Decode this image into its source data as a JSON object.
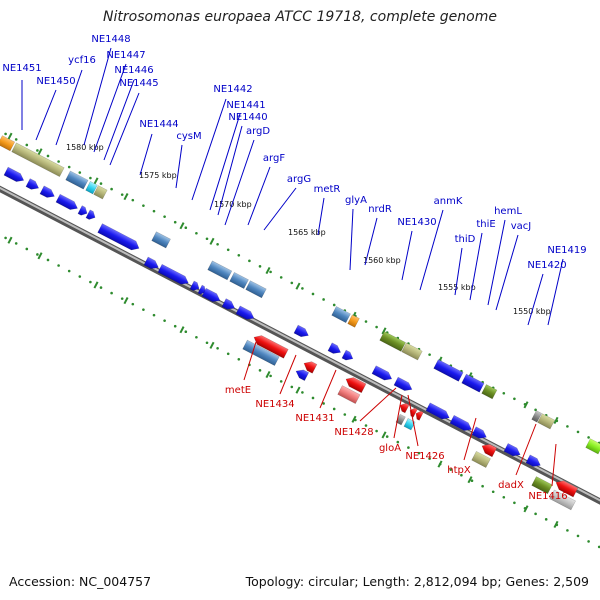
{
  "title": "Nitrosomonas europaea ATCC 19718, complete genome",
  "accession": "Accession: NC_004757",
  "summary": "Topology: circular; Length: 2,812,094 bp; Genes: 2,509",
  "colors": {
    "top_label": "#0000c8",
    "bottom_label": "#cc0000",
    "gene_blue": "#1a1aee",
    "gene_red": "#ee1111",
    "backbone": "#777777",
    "tick": "#2e8b2e"
  },
  "kbp_labels": [
    "1580 kbp",
    "1575 kbp",
    "1570 kbp",
    "1565 kbp",
    "1560 kbp",
    "1555 kbp",
    "1550 kbp"
  ],
  "top_labels": [
    "NE1451",
    "NE1448",
    "ycf16",
    "NE1447",
    "NE1450",
    "NE1446",
    "NE1445",
    "NE1444",
    "cysM",
    "NE1442",
    "NE1441",
    "NE1440",
    "argD",
    "argF",
    "argG",
    "metR",
    "glyA",
    "nrdR",
    "anmK",
    "NE1430",
    "hemL",
    "thiE",
    "thiD",
    "vacJ",
    "NE1419",
    "NE1420"
  ],
  "bottom_labels": [
    "metE",
    "NE1434",
    "NE1431",
    "NE1428",
    "gloA",
    "NE1426",
    "htpX",
    "dadX",
    "NE1416"
  ]
}
